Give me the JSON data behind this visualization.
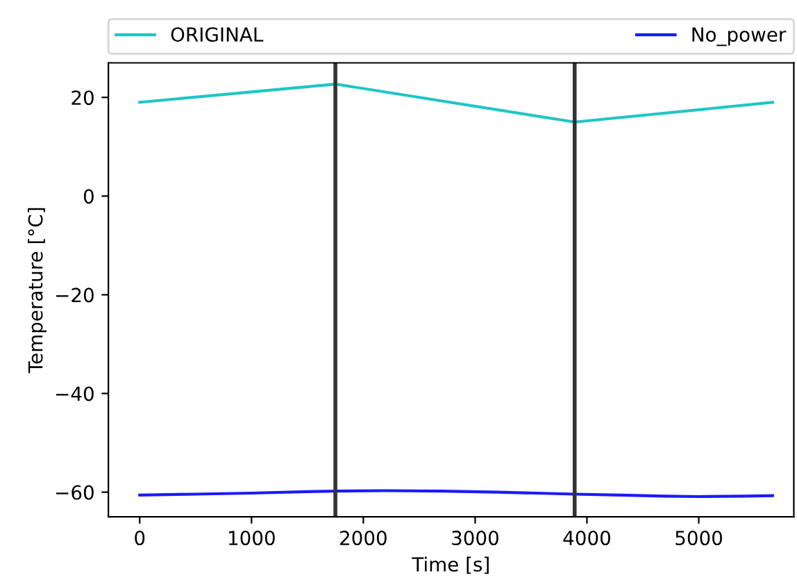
{
  "chart_data": {
    "type": "line",
    "xlabel": "Time [s]",
    "ylabel": "Temperature [°C]",
    "xlim": [
      -280,
      5850
    ],
    "ylim": [
      -65,
      27
    ],
    "xticks": [
      0,
      1000,
      2000,
      3000,
      4000,
      5000
    ],
    "yticks": [
      -60,
      -40,
      -20,
      0,
      20
    ],
    "grid": false,
    "legend": "top",
    "series": [
      {
        "name": "ORIGINAL",
        "color": "#20c5c5",
        "x": [
          0,
          1750,
          3890,
          5660
        ],
        "values": [
          19,
          22.7,
          15,
          19
        ]
      },
      {
        "name": "No_power",
        "color": "#1a1aff",
        "x": [
          0,
          500,
          1000,
          1500,
          1750,
          2200,
          2700,
          3200,
          3890,
          4300,
          4700,
          5000,
          5400,
          5660
        ],
        "values": [
          -60.6,
          -60.4,
          -60.2,
          -59.9,
          -59.8,
          -59.7,
          -59.8,
          -60.0,
          -60.4,
          -60.6,
          -60.8,
          -60.9,
          -60.8,
          -60.7
        ]
      }
    ],
    "ref_lines": [
      {
        "axis": "x",
        "value": 1750,
        "color": "#333333"
      },
      {
        "axis": "x",
        "value": 3890,
        "color": "#333333"
      }
    ]
  }
}
